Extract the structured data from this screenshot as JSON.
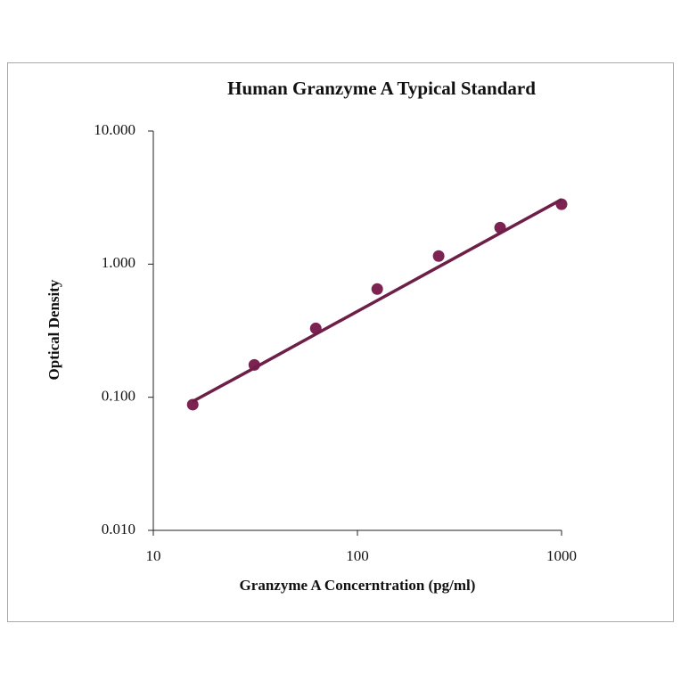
{
  "chart_data": {
    "type": "scatter",
    "title": "Human Granzyme A Typical Standard",
    "x_label": "Granzyme A Concerntration (pg/ml)",
    "y_label": "Optical Density",
    "log_x": true,
    "log_y": true,
    "xlim": [
      10,
      1000
    ],
    "xticks": [
      10,
      100,
      1000
    ],
    "ylim": [
      0.01,
      10
    ],
    "yticks": [
      {
        "value": 0.01,
        "label": "0.010"
      },
      {
        "value": 0.1,
        "label": "0.100"
      },
      {
        "value": 1,
        "label": "1.000"
      },
      {
        "value": 10,
        "label": "10.000"
      }
    ],
    "series": [
      {
        "kind": "points",
        "color": "#7d2352",
        "x": [
          15.6,
          31.25,
          62.5,
          125,
          250,
          500,
          1000
        ],
        "values": [
          0.088,
          0.175,
          0.329,
          0.65,
          1.15,
          1.88,
          2.82
        ]
      },
      {
        "kind": "line",
        "color": "#6e1f48",
        "x": [
          15.6,
          31.25,
          62.5,
          125,
          250,
          500,
          1000
        ],
        "values": [
          0.093,
          0.166,
          0.298,
          0.533,
          0.955,
          1.71,
          3.06
        ]
      }
    ]
  }
}
